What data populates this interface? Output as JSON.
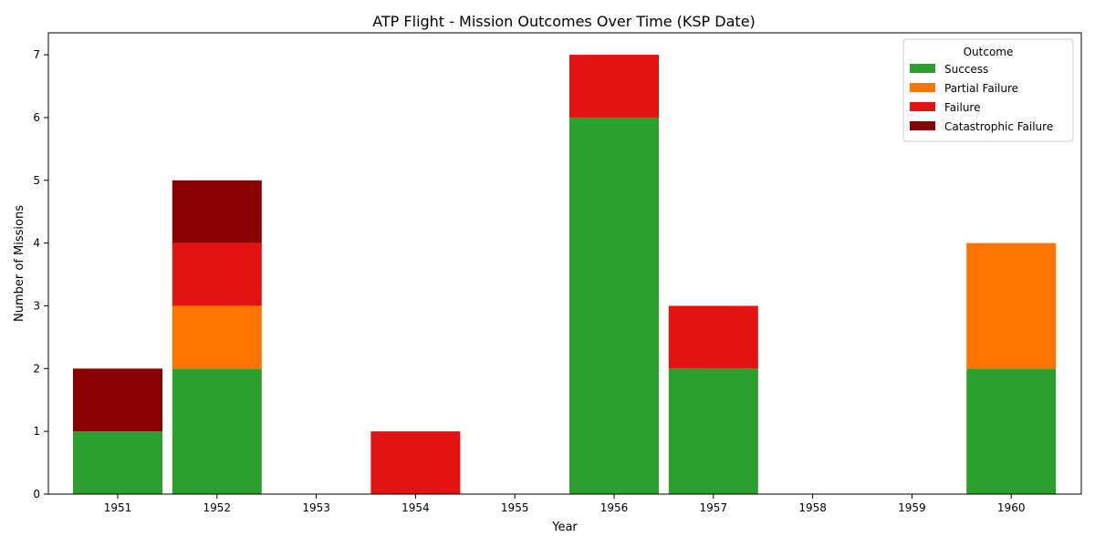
{
  "chart_data": {
    "type": "bar",
    "stacked": true,
    "title": "ATP Flight - Mission Outcomes Over Time (KSP Date)",
    "xlabel": "Year",
    "ylabel": "Number of Missions",
    "ylim": [
      0,
      7.35
    ],
    "yticks": [
      "0",
      "1",
      "2",
      "3",
      "4",
      "5",
      "6",
      "7"
    ],
    "grid": false,
    "legend_position": "top-right",
    "legend_title": "Outcome",
    "categories": [
      "1951",
      "1952",
      "1953",
      "1954",
      "1955",
      "1956",
      "1957",
      "1958",
      "1959",
      "1960"
    ],
    "series": [
      {
        "name": "Success",
        "color": "#2ca02c",
        "values": [
          1,
          2,
          0,
          0,
          0,
          6,
          2,
          0,
          0,
          2
        ]
      },
      {
        "name": "Partial Failure",
        "color": "#ff7500",
        "values": [
          0,
          1,
          0,
          0,
          0,
          0,
          0,
          0,
          0,
          2
        ]
      },
      {
        "name": "Failure",
        "color": "#e41313",
        "values": [
          0,
          1,
          0,
          1,
          0,
          1,
          1,
          0,
          0,
          0
        ]
      },
      {
        "name": "Catastrophic Failure",
        "color": "#8b0000",
        "values": [
          1,
          1,
          0,
          0,
          0,
          0,
          0,
          0,
          0,
          0
        ]
      }
    ]
  }
}
